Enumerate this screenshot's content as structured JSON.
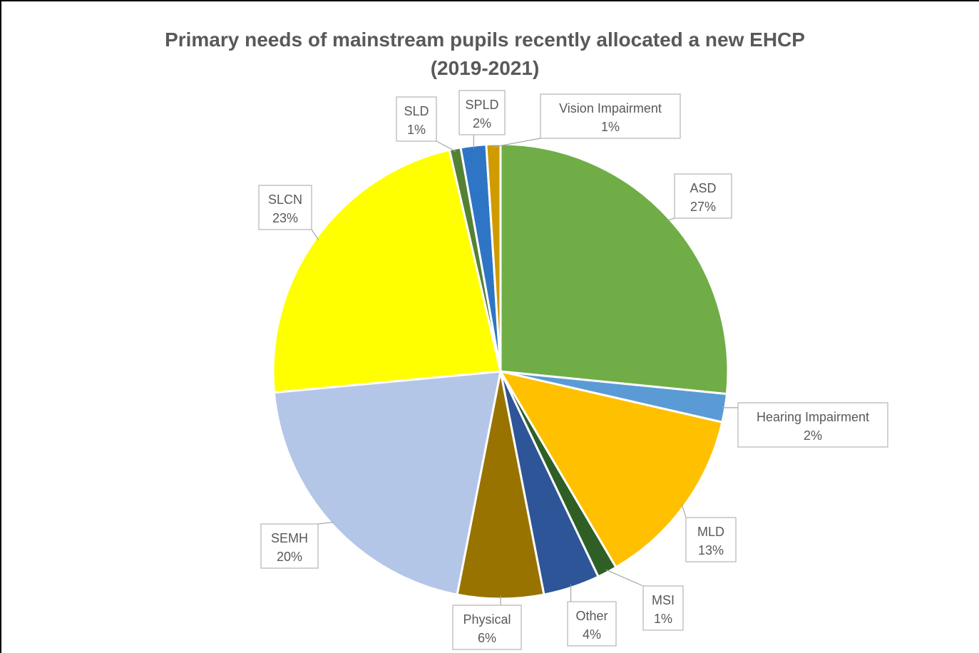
{
  "chart_data": {
    "type": "pie",
    "title_lines": [
      "Primary needs of mainstream pupils recently allocated a new EHCP",
      "(2019-2021)"
    ],
    "legend": "none",
    "start_angle": "12 o'clock, clockwise",
    "slices": [
      {
        "name": "ASD",
        "value": 26.5,
        "label": "27%",
        "color": "#70ad47"
      },
      {
        "name": "Hearing Impairment",
        "value": 2.0,
        "label": "2%",
        "color": "#5b9bd5"
      },
      {
        "name": "MLD",
        "value": 12.9,
        "label": "13%",
        "color": "#ffc000"
      },
      {
        "name": "MSI",
        "value": 1.4,
        "label": "1%",
        "color": "#2f5f25"
      },
      {
        "name": "Other",
        "value": 4.0,
        "label": "4%",
        "color": "#2e5597"
      },
      {
        "name": "Physical",
        "value": 6.1,
        "label": "6%",
        "color": "#997300"
      },
      {
        "name": "SEMH",
        "value": 20.4,
        "label": "20%",
        "color": "#b4c6e7"
      },
      {
        "name": "SLCN",
        "value": 22.8,
        "label": "23%",
        "color": "#ffff00"
      },
      {
        "name": "SLD",
        "value": 0.8,
        "label": "1%",
        "color": "#548235"
      },
      {
        "name": "SPLD",
        "value": 1.8,
        "label": "2%",
        "color": "#2e75c6"
      },
      {
        "name": "Vision Impairment",
        "value": 1.0,
        "label": "1%",
        "color": "#d09b00"
      }
    ]
  }
}
